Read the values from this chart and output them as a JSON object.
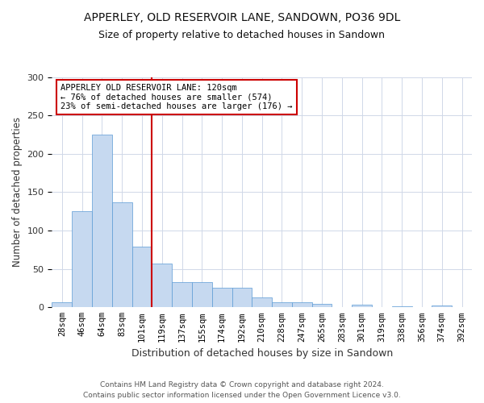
{
  "title_line1": "APPERLEY, OLD RESERVOIR LANE, SANDOWN, PO36 9DL",
  "title_line2": "Size of property relative to detached houses in Sandown",
  "xlabel": "Distribution of detached houses by size in Sandown",
  "ylabel": "Number of detached properties",
  "bar_values": [
    7,
    125,
    225,
    137,
    79,
    57,
    33,
    33,
    26,
    26,
    13,
    7,
    7,
    4,
    0,
    3,
    0,
    1,
    0,
    2
  ],
  "bar_labels": [
    "28sqm",
    "46sqm",
    "64sqm",
    "83sqm",
    "101sqm",
    "119sqm",
    "137sqm",
    "155sqm",
    "174sqm",
    "192sqm",
    "210sqm",
    "228sqm",
    "247sqm",
    "265sqm",
    "283sqm",
    "301sqm",
    "319sqm",
    "338sqm",
    "356sqm",
    "374sqm",
    "392sqm"
  ],
  "bar_color": "#c6d9f0",
  "bar_edge_color": "#5b9bd5",
  "grid_color": "#d0d8e8",
  "vline_color": "#cc0000",
  "annotation_line1": "APPERLEY OLD RESERVOIR LANE: 120sqm",
  "annotation_line2": "← 76% of detached houses are smaller (574)",
  "annotation_line3": "23% of semi-detached houses are larger (176) →",
  "annotation_box_facecolor": "#ffffff",
  "annotation_box_edgecolor": "#cc0000",
  "ylim": [
    0,
    300
  ],
  "yticks": [
    0,
    50,
    100,
    150,
    200,
    250,
    300
  ],
  "footer_line1": "Contains HM Land Registry data © Crown copyright and database right 2024.",
  "footer_line2": "Contains public sector information licensed under the Open Government Licence v3.0.",
  "bg_color": "#ffffff"
}
